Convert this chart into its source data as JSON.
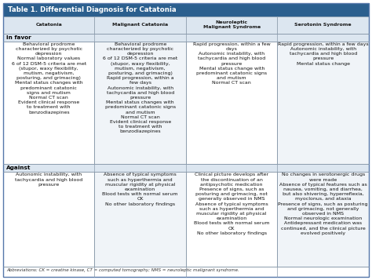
{
  "title": "Table 1. Differential Diagnosis for Catatonia",
  "header_bg": "#2b5f8e",
  "header_text_color": "#ffffff",
  "subheader_bg": "#dce6f0",
  "subheader_text_color": "#1a1a1a",
  "section_bg": "#dce6f0",
  "body_bg": "#ffffff",
  "alt_col_bg": "#f0f4f8",
  "border_color": "#a0aab4",
  "columns": [
    "Catatonia",
    "Malignant Catatonia",
    "Neuroleptic\nMalignant Syndrome",
    "Serotonin Syndrome"
  ],
  "in_favor": [
    "Behavioral prodrome\ncharacterized by psychotic\ndepression\nNormal laboratory values\n6 of 12 DSM-5 criteria are met\n(stupor, waxy flexibility,\nmutism, negativism,\nposturing, and grimacing)\nMental status changes with\npredominant catatonic\nsigns and mutism\nNormal CT scan\nEvident clinical response\nto treatment with\nbenzodiazepines",
    "Behavioral prodrome\ncharacterized by psychotic\ndepression\n6 of 12 DSM-5 criteria are met\n(stupor, waxy flexibility,\nmutism, negativism,\nposturing, and grimacing)\nRapid progression, within a\nfew days\nAutonomic instability, with\ntachycardia and high blood\npressure\nMental status changes with\npredominant catatonic signs\nand mutism\nNormal CT scan\nEvident clinical response\nto treatment with\nbenzodiazepines",
    "Rapid progression, within a few\ndays\nAutonomic instability, with\ntachycardia and high blood\npressure\nMental status change with\npredominant catatonic signs\nand mutism\nNormal CT scan",
    "Rapid progression, within a few days\nAutonomic instability, with\ntachycardia and high blood\npressure\nMental status change"
  ],
  "against": [
    "Autonomic instability, with\ntachycardia and high blood\npressure",
    "Absence of typical symptoms\nsuch as hyperthermia and\nmuscular rigidity at physical\nexamination\nBlood tests with normal serum\nCK\nNo other laboratory findings",
    "Clinical picture develops after\nthe discontinuation of an\nantipsychotic medication\nPresence of signs, such as\nposturing and grimacing, not\ngenerally observed in NMS\nAbsence of typical symptoms\nsuch as hyperthermia and\nmuscular rigidity at physical\nexamination\nBlood tests with normal serum\nCK\nNo other laboratory findings",
    "No changes in serotonergic drugs\nwere made\nAbsence of typical features such as\nnausea, vomiting, and diarrhea,\nbut also shivering, hyperreflexia,\nmyoclonus, and ataxia\nPresence of signs, such as posturing\nand grimacing, not generally\nobserved in NMS\nNormal neurologic examination\nAntidepressant medication was\ncontinued, and the clinical picture\nevolved positively"
  ],
  "abbreviations": "Abbreviations: CK = creatine kinase, CT = computed tomography; NMS = neuroleptic malignant syndrome.",
  "font_size": 4.5,
  "title_font_size": 6.2,
  "section_font_size": 5.2
}
